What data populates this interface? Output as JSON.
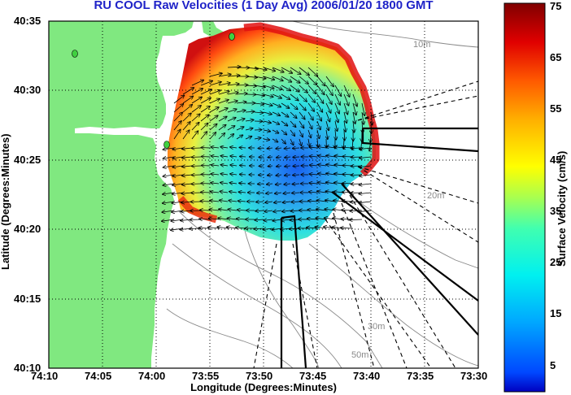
{
  "title": "RU COOL Raw Velocities (1 Day Avg) 2006/01/20 1800 GMT",
  "xlabel": "Longitude (Degrees:Minutes)",
  "ylabel": "Latitude (Degrees:Minutes)",
  "xticks": [
    "74:10",
    "74:05",
    "74:00",
    "73:55",
    "73:50",
    "73:45",
    "73:40",
    "73:35",
    "73:30"
  ],
  "yticks": [
    "40:35",
    "40:30",
    "40:25",
    "40:20",
    "40:15",
    "40:10"
  ],
  "colorbar": {
    "label": "Surface Velocity (cm/s)",
    "ticks": [
      "75",
      "65",
      "55",
      "45",
      "35",
      "25",
      "15",
      "5"
    ],
    "range": [
      0,
      75
    ],
    "units": "cm/s"
  },
  "contour_labels": [
    "10m",
    "20m",
    "30m",
    "50m"
  ],
  "colors": {
    "title": "#1f23c8",
    "land": "#80e880",
    "ocean_background": "#ffffff",
    "bathymetry_contours": "#8a8a8a",
    "colormap": "jet"
  },
  "extent": {
    "lon": [
      "74:10W",
      "73:30W"
    ],
    "lat": [
      "40:10N",
      "40:35N"
    ]
  },
  "overlays": {
    "velocity_arrows": true,
    "grid": "dotted",
    "radar_beams": "dashed",
    "radar_sites": 4
  }
}
